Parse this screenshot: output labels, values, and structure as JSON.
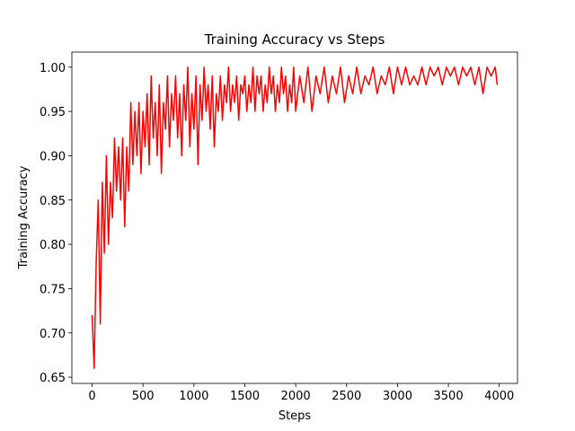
{
  "chart_data": {
    "type": "line",
    "title": "Training Accuracy vs Steps",
    "xlabel": "Steps",
    "ylabel": "Training Accuracy",
    "x": [
      0,
      20,
      40,
      60,
      80,
      100,
      120,
      140,
      160,
      180,
      200,
      220,
      240,
      260,
      280,
      300,
      320,
      340,
      360,
      380,
      400,
      420,
      440,
      460,
      480,
      500,
      520,
      540,
      560,
      580,
      600,
      620,
      640,
      660,
      680,
      700,
      720,
      740,
      760,
      780,
      800,
      820,
      840,
      860,
      880,
      900,
      920,
      940,
      960,
      980,
      1000,
      1020,
      1040,
      1060,
      1080,
      1100,
      1120,
      1140,
      1160,
      1180,
      1200,
      1220,
      1240,
      1260,
      1280,
      1300,
      1320,
      1340,
      1360,
      1380,
      1400,
      1420,
      1440,
      1460,
      1480,
      1500,
      1520,
      1540,
      1560,
      1580,
      1600,
      1620,
      1640,
      1660,
      1680,
      1700,
      1720,
      1740,
      1760,
      1780,
      1800,
      1820,
      1840,
      1860,
      1880,
      1900,
      1920,
      1940,
      1960,
      1980,
      2000,
      2040,
      2080,
      2120,
      2160,
      2200,
      2240,
      2280,
      2320,
      2360,
      2400,
      2440,
      2480,
      2520,
      2560,
      2600,
      2640,
      2680,
      2720,
      2760,
      2800,
      2840,
      2880,
      2920,
      2960,
      3000,
      3040,
      3080,
      3120,
      3160,
      3200,
      3240,
      3280,
      3320,
      3360,
      3400,
      3440,
      3480,
      3520,
      3560,
      3600,
      3640,
      3680,
      3720,
      3760,
      3800,
      3840,
      3880,
      3920,
      3960,
      3980
    ],
    "series": [
      {
        "name": "accuracy",
        "color": "#ff0000",
        "values": [
          0.72,
          0.66,
          0.78,
          0.85,
          0.71,
          0.87,
          0.79,
          0.9,
          0.8,
          0.87,
          0.83,
          0.92,
          0.86,
          0.91,
          0.85,
          0.92,
          0.82,
          0.91,
          0.86,
          0.96,
          0.89,
          0.95,
          0.9,
          0.96,
          0.88,
          0.95,
          0.91,
          0.97,
          0.89,
          0.99,
          0.92,
          0.96,
          0.9,
          0.98,
          0.88,
          0.96,
          0.93,
          0.99,
          0.91,
          0.97,
          0.94,
          0.99,
          0.92,
          0.97,
          0.9,
          0.98,
          0.94,
          1.0,
          0.91,
          0.97,
          0.93,
          0.99,
          0.89,
          0.98,
          0.94,
          1.0,
          0.95,
          0.98,
          0.93,
          0.99,
          0.91,
          0.97,
          0.95,
          0.99,
          0.94,
          0.98,
          0.96,
          1.0,
          0.95,
          0.98,
          0.96,
          0.99,
          0.94,
          0.98,
          0.97,
          0.99,
          0.95,
          0.98,
          0.96,
          1.0,
          0.95,
          0.99,
          0.97,
          0.99,
          0.95,
          0.98,
          0.96,
          1.0,
          0.97,
          0.99,
          0.95,
          0.98,
          0.96,
          1.0,
          0.97,
          0.99,
          0.95,
          0.98,
          0.96,
          1.0,
          0.95,
          0.99,
          0.96,
          1.0,
          0.95,
          0.99,
          0.97,
          1.0,
          0.96,
          0.99,
          0.97,
          1.0,
          0.96,
          0.99,
          0.97,
          1.0,
          0.97,
          0.99,
          0.98,
          1.0,
          0.97,
          0.99,
          0.98,
          1.0,
          0.97,
          1.0,
          0.98,
          1.0,
          0.98,
          0.99,
          0.98,
          1.0,
          0.98,
          1.0,
          0.99,
          1.0,
          0.98,
          1.0,
          0.99,
          1.0,
          0.98,
          1.0,
          0.99,
          1.0,
          0.98,
          1.0,
          0.97,
          1.0,
          0.99,
          1.0,
          0.98
        ]
      }
    ],
    "xlim": [
      -199,
      4179
    ],
    "ylim": [
      0.643,
      1.017
    ],
    "xticks": [
      0,
      500,
      1000,
      1500,
      2000,
      2500,
      3000,
      3500,
      4000
    ],
    "yticks": [
      {
        "value": 0.65,
        "label": "0.65"
      },
      {
        "value": 0.7,
        "label": "0.70"
      },
      {
        "value": 0.75,
        "label": "0.75"
      },
      {
        "value": 0.8,
        "label": "0.80"
      },
      {
        "value": 0.85,
        "label": "0.85"
      },
      {
        "value": 0.9,
        "label": "0.90"
      },
      {
        "value": 0.95,
        "label": "0.95"
      },
      {
        "value": 1.0,
        "label": "1.00"
      }
    ],
    "grid": false
  }
}
